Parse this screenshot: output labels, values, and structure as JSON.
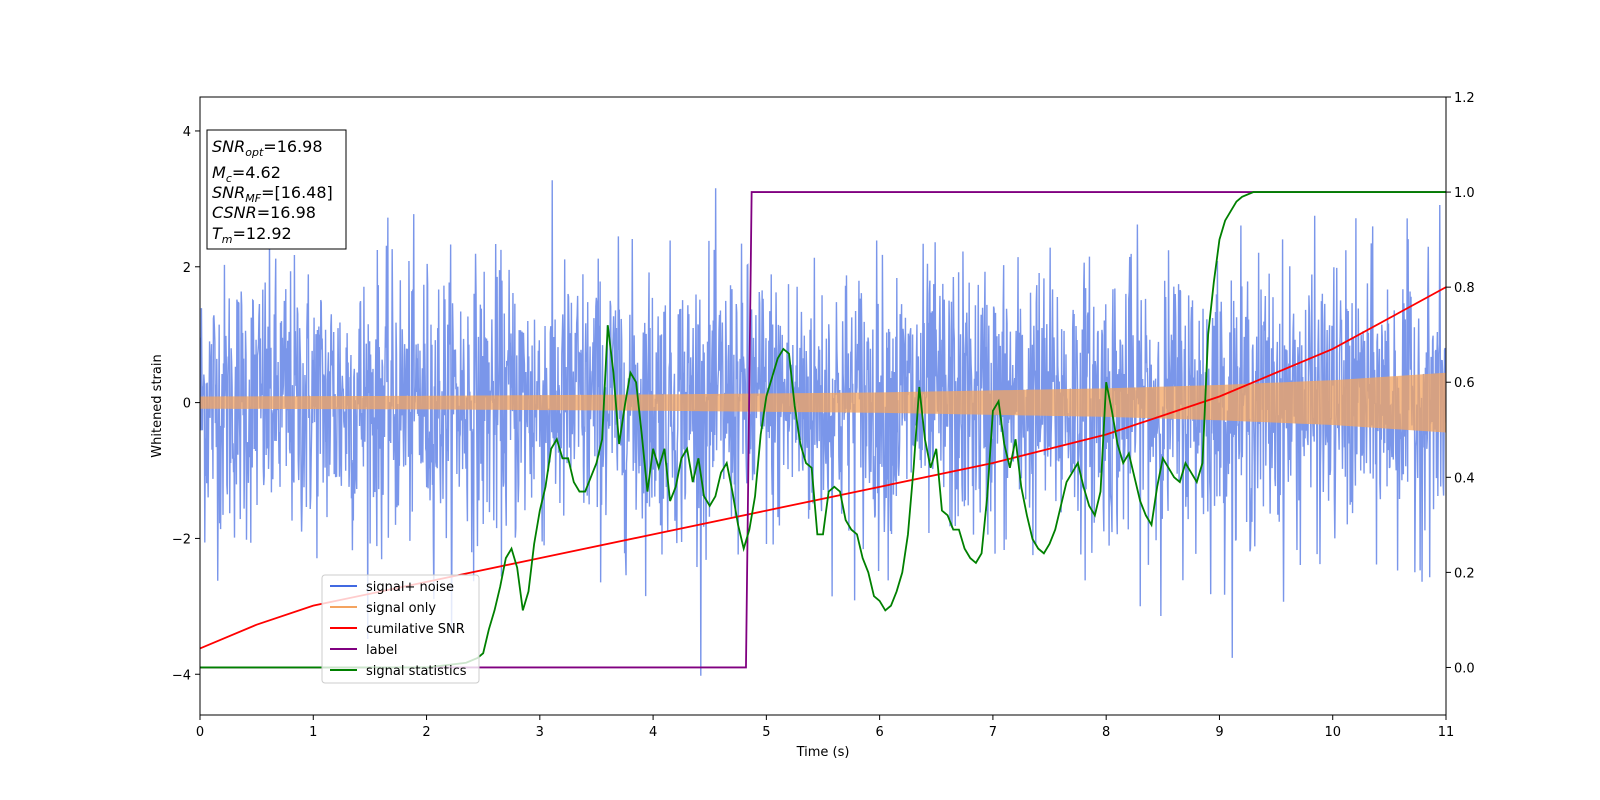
{
  "chart_data": {
    "type": "line",
    "xlabel": "Time (s)",
    "ylabel": "Whitened strain",
    "xlim": [
      0,
      11
    ],
    "ylim_left": [
      -4.6,
      4.5
    ],
    "ylim_right": [
      -0.1,
      1.2
    ],
    "x_ticks": [
      "0",
      "1",
      "2",
      "3",
      "4",
      "5",
      "6",
      "7",
      "8",
      "9",
      "10",
      "11"
    ],
    "y_ticks_left": [
      "−4",
      "−2",
      "0",
      "2",
      "4"
    ],
    "y_ticks_right": [
      "0.0",
      "0.2",
      "0.4",
      "0.6",
      "0.8",
      "1.0",
      "1.2"
    ],
    "annotation": [
      {
        "name": "SNR",
        "sub": "opt",
        "value": "=16.98"
      },
      {
        "name": "M",
        "sub": "c",
        "value": "=4.62"
      },
      {
        "name": "SNR",
        "sub": "MF",
        "value": "=[16.48]"
      },
      {
        "name": "CSNR",
        "sub": "",
        "value": "=16.98"
      },
      {
        "name": "T",
        "sub": "m",
        "value": "=12.92"
      }
    ],
    "series": [
      {
        "name": "signal+ noise",
        "axis": "left",
        "color": "#4169e1",
        "description": "whitened noise, approx std 1, range about ±4",
        "envelope_std": 1.0
      },
      {
        "name": "signal only",
        "axis": "left",
        "color": "#f4a460",
        "amplitude": {
          "x": [
            0,
            2,
            4,
            6,
            8,
            9,
            10,
            11
          ],
          "y": [
            0.09,
            0.1,
            0.12,
            0.15,
            0.21,
            0.26,
            0.33,
            0.44
          ]
        }
      },
      {
        "name": "cumilative SNR",
        "axis": "right",
        "color": "#ff0000",
        "x": [
          0,
          0.5,
          1,
          2,
          3,
          4,
          5,
          6,
          7,
          8,
          9,
          10,
          11
        ],
        "y": [
          0.04,
          0.09,
          0.13,
          0.18,
          0.23,
          0.28,
          0.33,
          0.38,
          0.43,
          0.49,
          0.57,
          0.67,
          0.8
        ]
      },
      {
        "name": "label",
        "axis": "right",
        "color": "#800080",
        "x": [
          0,
          4.82,
          4.87,
          11
        ],
        "y": [
          0.0,
          0.0,
          1.0,
          1.0
        ]
      },
      {
        "name": "signal statistics",
        "axis": "right",
        "color": "#008000",
        "x": [
          0,
          1.0,
          2.0,
          2.35,
          2.45,
          2.5,
          2.55,
          2.6,
          2.65,
          2.7,
          2.75,
          2.8,
          2.85,
          2.9,
          2.95,
          3.0,
          3.05,
          3.1,
          3.15,
          3.2,
          3.25,
          3.3,
          3.35,
          3.4,
          3.45,
          3.5,
          3.55,
          3.6,
          3.65,
          3.7,
          3.75,
          3.8,
          3.85,
          3.9,
          3.95,
          4.0,
          4.05,
          4.1,
          4.15,
          4.2,
          4.25,
          4.3,
          4.35,
          4.4,
          4.45,
          4.5,
          4.55,
          4.6,
          4.65,
          4.7,
          4.75,
          4.8,
          4.85,
          4.9,
          4.95,
          5.0,
          5.05,
          5.1,
          5.15,
          5.2,
          5.25,
          5.3,
          5.35,
          5.4,
          5.45,
          5.5,
          5.55,
          5.6,
          5.65,
          5.7,
          5.75,
          5.8,
          5.85,
          5.9,
          5.95,
          6.0,
          6.05,
          6.1,
          6.15,
          6.2,
          6.25,
          6.3,
          6.35,
          6.4,
          6.45,
          6.5,
          6.55,
          6.6,
          6.65,
          6.7,
          6.75,
          6.8,
          6.85,
          6.9,
          6.95,
          7.0,
          7.05,
          7.1,
          7.15,
          7.2,
          7.25,
          7.3,
          7.35,
          7.4,
          7.45,
          7.5,
          7.55,
          7.6,
          7.65,
          7.7,
          7.75,
          7.8,
          7.85,
          7.9,
          7.95,
          8.0,
          8.05,
          8.1,
          8.15,
          8.2,
          8.25,
          8.3,
          8.35,
          8.4,
          8.45,
          8.5,
          8.55,
          8.6,
          8.65,
          8.7,
          8.75,
          8.8,
          8.85,
          8.9,
          8.95,
          9.0,
          9.05,
          9.1,
          9.15,
          9.2,
          9.3,
          9.5,
          9.7,
          10.0,
          11.0
        ],
        "y": [
          0.0,
          0.0,
          0.0,
          0.01,
          0.02,
          0.03,
          0.08,
          0.12,
          0.17,
          0.23,
          0.25,
          0.21,
          0.12,
          0.16,
          0.26,
          0.33,
          0.38,
          0.46,
          0.48,
          0.44,
          0.44,
          0.39,
          0.37,
          0.37,
          0.4,
          0.43,
          0.48,
          0.72,
          0.62,
          0.47,
          0.55,
          0.62,
          0.6,
          0.49,
          0.37,
          0.46,
          0.42,
          0.46,
          0.35,
          0.38,
          0.44,
          0.46,
          0.39,
          0.44,
          0.36,
          0.34,
          0.36,
          0.41,
          0.43,
          0.37,
          0.3,
          0.25,
          0.29,
          0.36,
          0.49,
          0.57,
          0.61,
          0.65,
          0.67,
          0.66,
          0.55,
          0.47,
          0.43,
          0.42,
          0.28,
          0.28,
          0.37,
          0.38,
          0.37,
          0.31,
          0.29,
          0.28,
          0.23,
          0.2,
          0.15,
          0.14,
          0.12,
          0.13,
          0.16,
          0.2,
          0.28,
          0.42,
          0.59,
          0.48,
          0.42,
          0.46,
          0.33,
          0.32,
          0.29,
          0.29,
          0.25,
          0.23,
          0.22,
          0.24,
          0.36,
          0.54,
          0.56,
          0.47,
          0.42,
          0.48,
          0.38,
          0.32,
          0.27,
          0.25,
          0.24,
          0.26,
          0.29,
          0.34,
          0.39,
          0.41,
          0.43,
          0.38,
          0.34,
          0.32,
          0.37,
          0.6,
          0.54,
          0.47,
          0.43,
          0.45,
          0.4,
          0.35,
          0.32,
          0.3,
          0.38,
          0.44,
          0.42,
          0.4,
          0.39,
          0.43,
          0.41,
          0.39,
          0.43,
          0.7,
          0.81,
          0.9,
          0.94,
          0.96,
          0.98,
          0.99,
          1.0,
          1.0,
          1.0,
          1.0,
          1.0
        ]
      }
    ],
    "legend": {
      "placement": "lower-left",
      "entries": [
        {
          "label": "signal+ noise",
          "color": "#4169e1"
        },
        {
          "label": "signal only",
          "color": "#f4a460"
        },
        {
          "label": "cumilative SNR",
          "color": "#ff0000"
        },
        {
          "label": "label",
          "color": "#800080"
        },
        {
          "label": "signal statistics",
          "color": "#008000"
        }
      ]
    }
  }
}
